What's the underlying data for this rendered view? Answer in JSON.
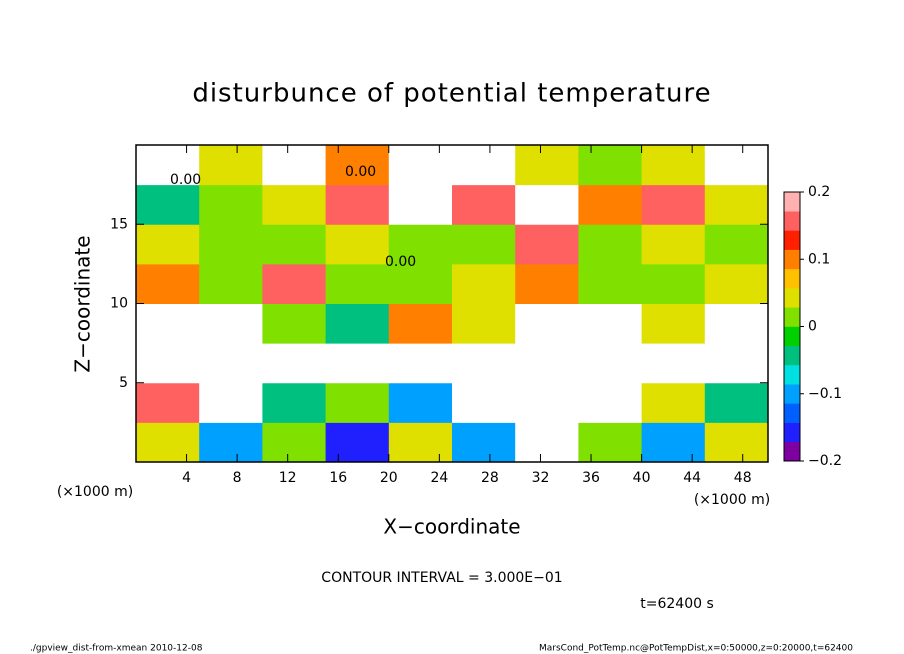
{
  "chart_data": {
    "type": "heatmap",
    "title": "disturbunce of potential temperature",
    "x_label": "X−coordinate",
    "y_label": "Z−coordinate",
    "x_unit_left": "(×1000 m)",
    "x_unit_right": "(×1000 m)",
    "contour_interval": "CONTOUR INTERVAL = 3.000E−01",
    "time_label": "t=62400 s",
    "footer_left": "./gpview_dist-from-xmean  2010-12-08",
    "footer_right": "MarsCond_PotTemp.nc@PotTempDist,x=0:50000,z=0:20000,t=62400",
    "contour_labels": [
      "0.00",
      "0.00",
      "0.00"
    ],
    "x": [
      2.5,
      7.5,
      12.5,
      17.5,
      22.5,
      27.5,
      32.5,
      37.5,
      42.5,
      47.5
    ],
    "y": [
      1.25,
      3.75,
      6.25,
      8.75,
      11.25,
      13.75,
      16.25,
      18.75
    ],
    "values": [
      [
        0.05,
        -0.1,
        0.0,
        -0.15,
        0.05,
        -0.1,
        0.2,
        0.0,
        -0.1,
        0.05
      ],
      [
        0.15,
        0.25,
        -0.05,
        0.0,
        -0.1,
        0.2,
        0.25,
        0.25,
        0.05,
        -0.05
      ],
      [
        0.3,
        0.3,
        0.3,
        0.25,
        0.3,
        0.3,
        0.3,
        0.3,
        0.3,
        0.3
      ],
      [
        0.25,
        0.2,
        0.0,
        -0.05,
        0.1,
        0.05,
        0.25,
        0.2,
        0.05,
        0.3
      ],
      [
        0.1,
        0.0,
        0.15,
        0.0,
        0.0,
        0.05,
        0.1,
        0.0,
        0.0,
        0.05
      ],
      [
        0.05,
        0.0,
        0.0,
        0.05,
        0.0,
        0.0,
        0.15,
        0.0,
        0.05,
        0.0
      ],
      [
        -0.05,
        0.0,
        0.05,
        0.15,
        0.25,
        0.15,
        0.2,
        0.1,
        0.15,
        0.05
      ],
      [
        0.25,
        0.05,
        0.25,
        0.1,
        0.2,
        0.25,
        0.05,
        0.0,
        0.05,
        0.25
      ]
    ],
    "xlim": [
      0,
      50
    ],
    "ylim": [
      0,
      20
    ],
    "xticks": [
      4,
      8,
      12,
      16,
      20,
      24,
      28,
      32,
      36,
      40,
      44,
      48
    ],
    "yticks": [
      5,
      10,
      15
    ],
    "clim": [
      -0.2,
      0.2
    ],
    "cticks": [
      {
        "value": -0.2,
        "label": "−0.2"
      },
      {
        "value": -0.1,
        "label": "−0.1"
      },
      0,
      0.1,
      0.2
    ],
    "colormap": [
      "#7f00a0",
      "#2020ff",
      "#0060ff",
      "#00a0ff",
      "#00e0e0",
      "#00c080",
      "#00d000",
      "#80e000",
      "#e0e000",
      "#ffc000",
      "#ff8000",
      "#ff2000",
      "#ff6060",
      "#ffb0b0"
    ],
    "over_color": "#ffffff"
  }
}
